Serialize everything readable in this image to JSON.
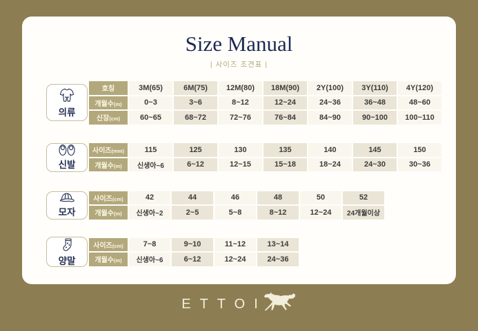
{
  "title": "Size Manual",
  "subtitle": "| 사이즈 조견표 |",
  "brand": {
    "name": "ETTOI",
    "logo_icon": "horse-icon"
  },
  "colors": {
    "background_olive": "#8c7e52",
    "card_white": "#fffefb",
    "header_tan": "#b3a87c",
    "cell_beige": "#eae5d6",
    "cell_cream": "#f9f6ee",
    "title_navy": "#1d2a50",
    "text_dark": "#3c3c3c"
  },
  "sections": [
    {
      "id": "clothing",
      "label": "의류",
      "icon": "onesie-icon",
      "width_class": "wide",
      "rows": [
        {
          "header": "호칭",
          "unit": "",
          "values": [
            "3M(65)",
            "6M(75)",
            "12M(80)",
            "18M(90)",
            "2Y(100)",
            "3Y(110)",
            "4Y(120)"
          ]
        },
        {
          "header": "개월수",
          "unit": "(m)",
          "values": [
            "0~3",
            "3~6",
            "8~12",
            "12~24",
            "24~36",
            "36~48",
            "48~60"
          ]
        },
        {
          "header": "신장",
          "unit": "(cm)",
          "values": [
            "60~65",
            "68~72",
            "72~76",
            "76~84",
            "84~90",
            "90~100",
            "100~110"
          ]
        }
      ]
    },
    {
      "id": "shoes",
      "label": "신발",
      "icon": "shoes-icon",
      "width_class": "wide",
      "rows": [
        {
          "header": "사이즈",
          "unit": "(mm)",
          "values": [
            "115",
            "125",
            "130",
            "135",
            "140",
            "145",
            "150"
          ]
        },
        {
          "header": "개월수",
          "unit": "(m)",
          "values": [
            "신생아~6",
            "6~12",
            "12~15",
            "15~18",
            "18~24",
            "24~30",
            "30~36"
          ]
        }
      ]
    },
    {
      "id": "hat",
      "label": "모자",
      "icon": "cap-icon",
      "width_class": "narrow",
      "rows": [
        {
          "header": "사이즈",
          "unit": "(cm)",
          "values": [
            "42",
            "44",
            "46",
            "48",
            "50",
            "52"
          ]
        },
        {
          "header": "개월수",
          "unit": "(m)",
          "values": [
            "신생아~2",
            "2~5",
            "5~8",
            "8~12",
            "12~24",
            "24개월이상"
          ]
        }
      ]
    },
    {
      "id": "socks",
      "label": "양말",
      "icon": "sock-icon",
      "width_class": "narrow",
      "rows": [
        {
          "header": "사이즈",
          "unit": "(cm)",
          "values": [
            "7~8",
            "9~10",
            "11~12",
            "13~14"
          ]
        },
        {
          "header": "개월수",
          "unit": "(m)",
          "values": [
            "신생아~6",
            "6~12",
            "12~24",
            "24~36"
          ]
        }
      ]
    }
  ]
}
